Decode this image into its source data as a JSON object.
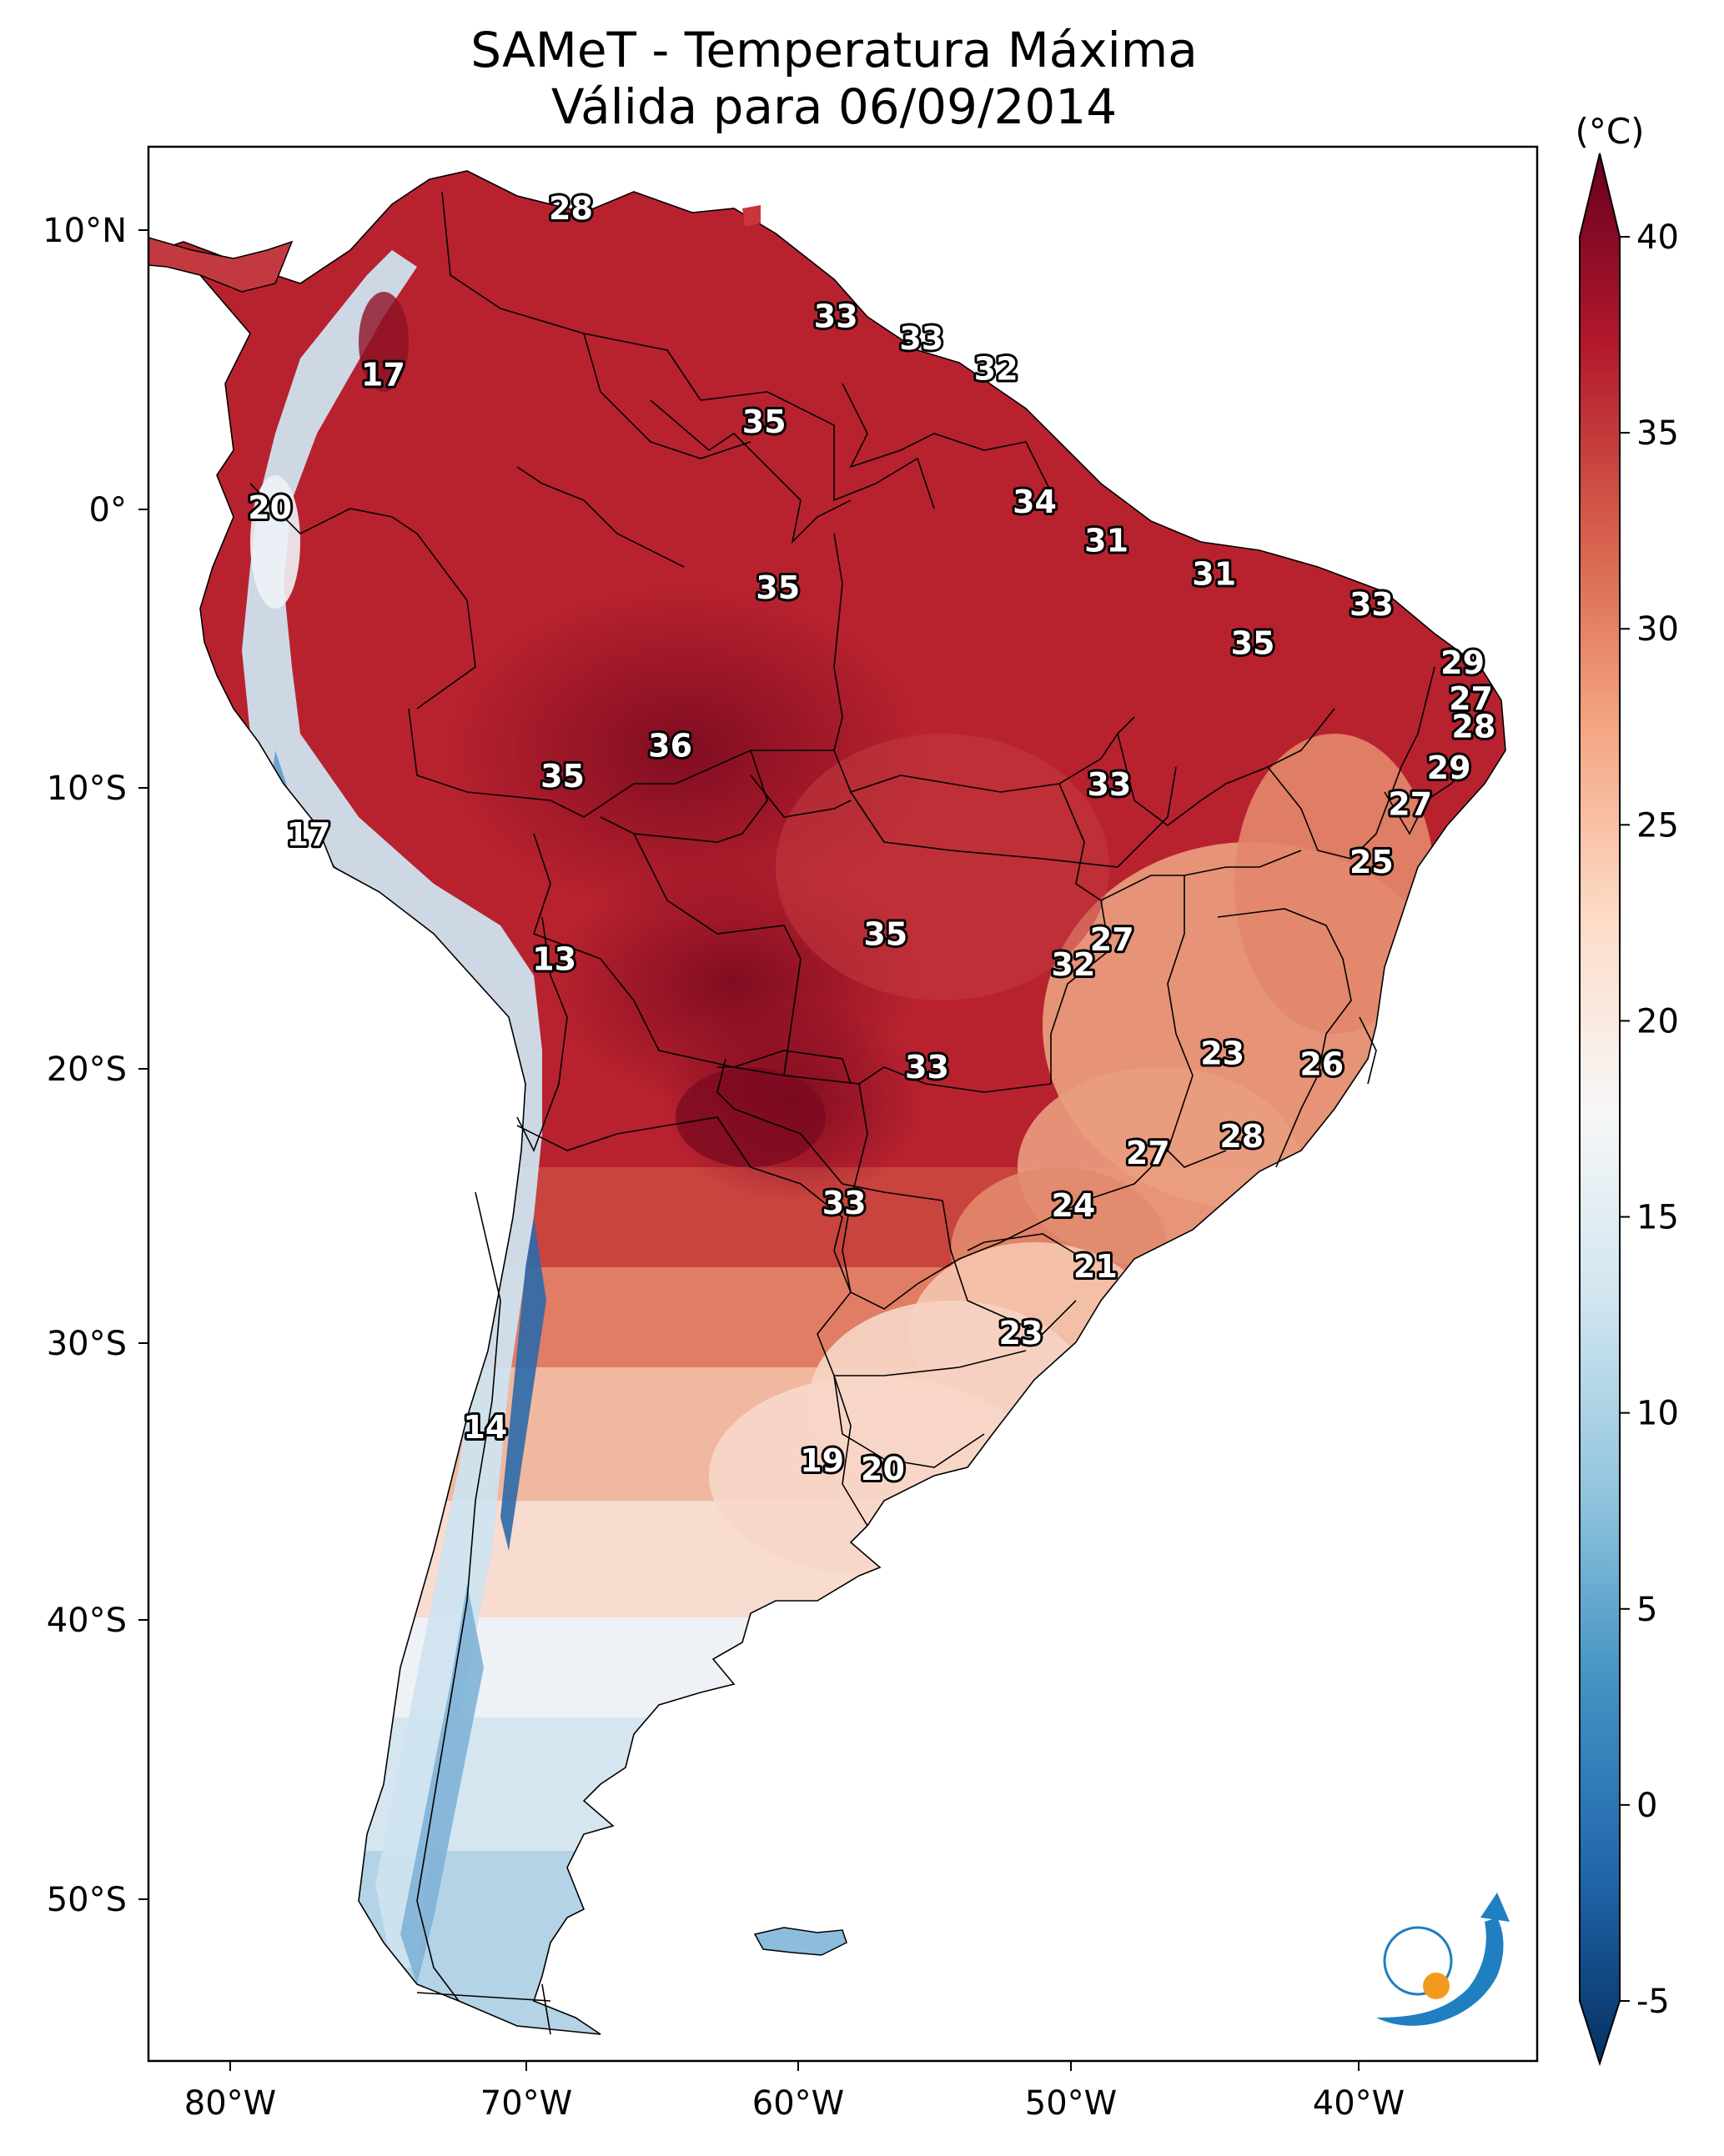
{
  "title": {
    "line1": "SAMeT - Temperatura Máxima",
    "line2": "Válida para 06/09/2014"
  },
  "colorbar": {
    "unit": "(°C)",
    "min": -5,
    "max": 40,
    "ticks": [
      "40",
      "35",
      "30",
      "25",
      "20",
      "15",
      "10",
      "5",
      "0",
      "-5"
    ],
    "colors": [
      "#053061",
      "#2166ac",
      "#4393c3",
      "#92c5de",
      "#d1e5f0",
      "#f7f7f7",
      "#fddbc7",
      "#f4a582",
      "#d6604d",
      "#b2182b",
      "#67001f"
    ]
  },
  "axes": {
    "lon_ticks": [
      "80°W",
      "70°W",
      "60°W",
      "50°W",
      "40°W"
    ],
    "lat_ticks": [
      "10°N",
      "0°",
      "10°S",
      "20°S",
      "30°S",
      "40°S",
      "50°S"
    ]
  },
  "map_data": {
    "type": "temperature-map",
    "extent": {
      "lon": [
        -82.8,
        -32.5
      ],
      "lat": [
        -56.2,
        12.9
      ]
    },
    "labels": [
      {
        "value": "28",
        "lon": -67.5,
        "lat": 10.6
      },
      {
        "value": "17",
        "lon": -74.3,
        "lat": 4.6
      },
      {
        "value": "20",
        "lon": -78.4,
        "lat": -0.2
      },
      {
        "value": "33",
        "lon": -57.9,
        "lat": 6.7
      },
      {
        "value": "33",
        "lon": -54.8,
        "lat": 5.9
      },
      {
        "value": "32",
        "lon": -52.1,
        "lat": 4.8
      },
      {
        "value": "35",
        "lon": -60.5,
        "lat": 2.9
      },
      {
        "value": "34",
        "lon": -50.7,
        "lat": 0.0
      },
      {
        "value": "31",
        "lon": -48.1,
        "lat": -1.4
      },
      {
        "value": "31",
        "lon": -44.2,
        "lat": -2.6
      },
      {
        "value": "35",
        "lon": -60.0,
        "lat": -3.1
      },
      {
        "value": "33",
        "lon": -38.5,
        "lat": -3.7
      },
      {
        "value": "35",
        "lon": -42.8,
        "lat": -5.1
      },
      {
        "value": "29",
        "lon": -35.2,
        "lat": -5.8
      },
      {
        "value": "27",
        "lon": -34.9,
        "lat": -7.1
      },
      {
        "value": "28",
        "lon": -34.8,
        "lat": -8.1
      },
      {
        "value": "36",
        "lon": -63.9,
        "lat": -8.8
      },
      {
        "value": "35",
        "lon": -67.8,
        "lat": -9.9
      },
      {
        "value": "33",
        "lon": -48.0,
        "lat": -10.2
      },
      {
        "value": "29",
        "lon": -35.7,
        "lat": -9.6
      },
      {
        "value": "27",
        "lon": -37.1,
        "lat": -10.9
      },
      {
        "value": "17",
        "lon": -77.0,
        "lat": -12.0
      },
      {
        "value": "25",
        "lon": -38.5,
        "lat": -13.0
      },
      {
        "value": "35",
        "lon": -56.1,
        "lat": -15.6
      },
      {
        "value": "27",
        "lon": -47.9,
        "lat": -15.8
      },
      {
        "value": "32",
        "lon": -49.3,
        "lat": -16.7
      },
      {
        "value": "13",
        "lon": -68.1,
        "lat": -16.5
      },
      {
        "value": "23",
        "lon": -43.9,
        "lat": -19.9
      },
      {
        "value": "26",
        "lon": -40.3,
        "lat": -20.3
      },
      {
        "value": "33",
        "lon": -54.6,
        "lat": -20.4
      },
      {
        "value": "28",
        "lon": -43.2,
        "lat": -22.9
      },
      {
        "value": "27",
        "lon": -46.6,
        "lat": -23.5
      },
      {
        "value": "33",
        "lon": -57.6,
        "lat": -25.3
      },
      {
        "value": "24",
        "lon": -49.3,
        "lat": -25.4
      },
      {
        "value": "21",
        "lon": -48.5,
        "lat": -27.6
      },
      {
        "value": "23",
        "lon": -51.2,
        "lat": -30.0
      },
      {
        "value": "14",
        "lon": -70.6,
        "lat": -33.4
      },
      {
        "value": "19",
        "lon": -58.4,
        "lat": -34.6
      },
      {
        "value": "20",
        "lon": -56.2,
        "lat": -34.9
      }
    ]
  }
}
